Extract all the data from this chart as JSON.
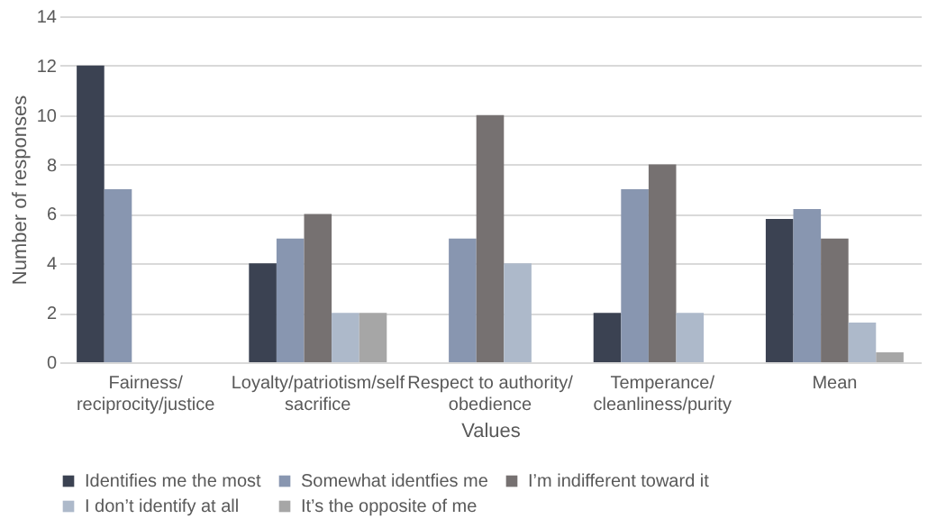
{
  "chart_data": {
    "type": "bar",
    "xlabel": "Values",
    "ylabel": "Number of responses",
    "categories": [
      "Fairness/\nreciprocity/justice",
      "Loyalty/patriotism/self\nsacrifice",
      "Respect to authority/\nobedience",
      "Temperance/\ncleanliness/purity",
      "Mean"
    ],
    "series": [
      {
        "name": "Identifies me the most",
        "color": "#3b4252",
        "values": [
          12,
          4,
          null,
          2,
          5.8
        ]
      },
      {
        "name": "Somewhat identfies me",
        "color": "#8896b0",
        "values": [
          7,
          5,
          5,
          7,
          6.2
        ]
      },
      {
        "name": "I’m indifferent toward it",
        "color": "#767171",
        "values": [
          null,
          6,
          10,
          8,
          5
        ]
      },
      {
        "name": "I don’t identify at all",
        "color": "#adb9ca",
        "values": [
          null,
          2,
          4,
          2,
          1.6
        ]
      },
      {
        "name": "It’s the opposite of me",
        "color": "#a6a6a6",
        "values": [
          null,
          2,
          null,
          null,
          0.4
        ]
      }
    ],
    "ylim": [
      0,
      14
    ],
    "yticks": [
      0,
      2,
      4,
      6,
      8,
      10,
      12,
      14
    ],
    "grid": "y",
    "legend": "bottom"
  }
}
